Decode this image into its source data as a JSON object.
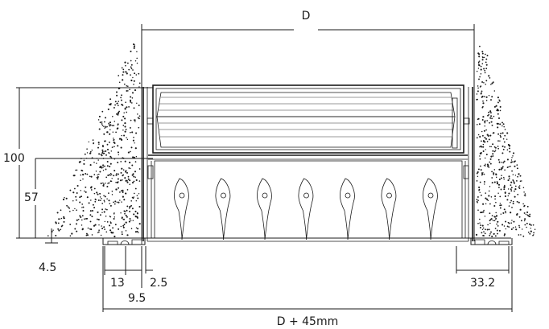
{
  "dimensions": {
    "top_width": "D",
    "overall_width": "D + 45mm",
    "height_total": "100",
    "height_lower": "57",
    "flange_offset": "4.5",
    "flange_13": "13",
    "flange_9_5": "9.5",
    "flange_2_5": "2.5",
    "flange_right": "33.2"
  },
  "blades_count": 7,
  "colors": {
    "line": "#1a1a1a",
    "fill": "#ffffff"
  }
}
